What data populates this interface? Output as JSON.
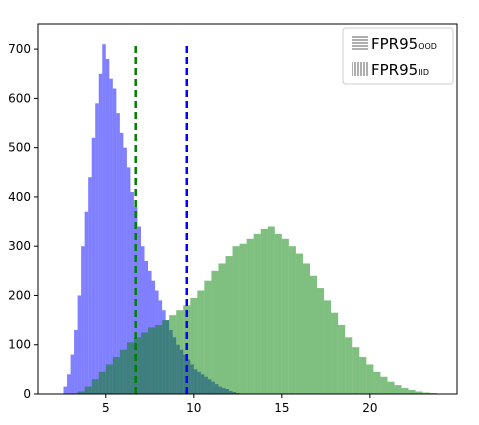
{
  "chart_data": {
    "type": "histogram",
    "series": [
      {
        "color": "#0000ff",
        "opacity": 0.5,
        "bins": [
          2.6,
          2.8,
          3.0,
          3.2,
          3.4,
          3.6,
          3.8,
          4.0,
          4.2,
          4.4,
          4.6,
          4.8,
          5.0,
          5.2,
          5.4,
          5.6,
          5.8,
          6.0,
          6.2,
          6.4,
          6.6,
          6.8,
          7.0,
          7.2,
          7.4,
          7.6,
          7.8,
          8.0,
          8.2,
          8.4,
          8.6,
          8.8,
          9.0,
          9.2,
          9.4,
          9.6,
          9.8,
          10.0,
          10.2,
          10.4,
          10.6,
          10.8,
          11.0,
          11.2,
          11.4,
          11.6,
          11.8,
          12.0,
          12.2,
          12.4,
          12.6
        ],
        "values": [
          15,
          40,
          80,
          130,
          200,
          300,
          370,
          440,
          520,
          590,
          650,
          710,
          680,
          640,
          620,
          570,
          530,
          500,
          460,
          410,
          380,
          340,
          300,
          270,
          250,
          230,
          210,
          190,
          170,
          150,
          130,
          115,
          100,
          90,
          80,
          70,
          60,
          50,
          45,
          40,
          35,
          30,
          25,
          20,
          15,
          12,
          10,
          6,
          4,
          2
        ]
      },
      {
        "color": "#008000",
        "opacity": 0.5,
        "bins": [
          3.4,
          3.8,
          4.2,
          4.6,
          5.0,
          5.4,
          5.8,
          6.2,
          6.6,
          7.0,
          7.4,
          7.8,
          8.2,
          8.6,
          9.0,
          9.4,
          9.8,
          10.2,
          10.6,
          11.0,
          11.4,
          11.8,
          12.2,
          12.6,
          13.0,
          13.4,
          13.8,
          14.2,
          14.6,
          15.0,
          15.4,
          15.8,
          16.2,
          16.6,
          17.0,
          17.4,
          17.8,
          18.2,
          18.6,
          19.0,
          19.4,
          19.8,
          20.2,
          20.6,
          21.0,
          21.4,
          21.8,
          22.2,
          22.6,
          23.0,
          23.4,
          23.8,
          24.2
        ],
        "values": [
          5,
          15,
          30,
          45,
          60,
          75,
          90,
          105,
          115,
          125,
          135,
          140,
          150,
          160,
          170,
          180,
          195,
          210,
          230,
          250,
          265,
          280,
          300,
          305,
          315,
          325,
          335,
          340,
          325,
          315,
          300,
          285,
          265,
          240,
          215,
          190,
          165,
          140,
          115,
          95,
          75,
          60,
          45,
          35,
          25,
          18,
          12,
          8,
          5,
          3,
          2,
          1
        ]
      }
    ],
    "vlines": [
      {
        "x": 6.7,
        "color": "#008000"
      },
      {
        "x": 9.6,
        "color": "#0000ff"
      }
    ],
    "legend": [
      {
        "label": "FPR95",
        "sub": "OOD",
        "hatch": "horizontal"
      },
      {
        "label": "FPR95",
        "sub": "IID",
        "hatch": "vertical"
      }
    ],
    "legend_position": "upper right",
    "xlim": [
      1.15,
      24.95
    ],
    "ylim": [
      0,
      751
    ],
    "xticks": [
      5,
      10,
      15,
      20
    ],
    "yticks": [
      0,
      100,
      200,
      300,
      400,
      500,
      600,
      700
    ]
  }
}
